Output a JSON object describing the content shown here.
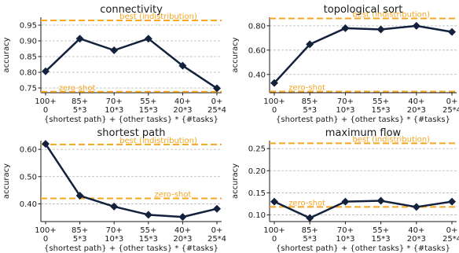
{
  "chart_data": [
    {
      "type": "line",
      "title": "connectivity",
      "xlabel": "{shortest path} + {other tasks} * {#tasks}",
      "ylabel": "accuracy",
      "categories": [
        [
          "100+",
          "0"
        ],
        [
          "85+",
          "5*3"
        ],
        [
          "70+",
          "10*3"
        ],
        [
          "55+",
          "15*3"
        ],
        [
          "40+",
          "20*3"
        ],
        [
          "0+",
          "25*4"
        ]
      ],
      "values": [
        0.803,
        0.907,
        0.87,
        0.907,
        0.821,
        0.749
      ],
      "ylim": [
        0.735,
        0.975
      ],
      "yticks": [
        0.75,
        0.8,
        0.85,
        0.9,
        0.95
      ],
      "ytick_labels": [
        "0.75",
        "0.80",
        "0.85",
        "0.90",
        "0.95"
      ],
      "grid": true,
      "reference_lines": [
        {
          "label": "best (indistribution)",
          "value": 0.965
        },
        {
          "label": "zero-shot",
          "value": 0.738
        }
      ]
    },
    {
      "type": "line",
      "title": "topological sort",
      "xlabel": "{shortest path} + {other tasks} * {#tasks}",
      "ylabel": "accuracy",
      "categories": [
        [
          "100+",
          "0"
        ],
        [
          "85+",
          "5*3"
        ],
        [
          "70+",
          "10*3"
        ],
        [
          "55+",
          "15*3"
        ],
        [
          "40+",
          "20*3"
        ],
        [
          "0+",
          "25*4"
        ]
      ],
      "values": [
        0.33,
        0.648,
        0.78,
        0.77,
        0.8,
        0.75
      ],
      "ylim": [
        0.25,
        0.87
      ],
      "yticks": [
        0.4,
        0.6,
        0.8
      ],
      "ytick_labels": [
        "0.40",
        "0.60",
        "0.80"
      ],
      "grid": true,
      "reference_lines": [
        {
          "label": "best (indistribution)",
          "value": 0.86
        },
        {
          "label": "zero-shot",
          "value": 0.26
        }
      ]
    },
    {
      "type": "line",
      "title": "shortest path",
      "xlabel": "{shortest path} + {other tasks} * {#tasks}",
      "ylabel": "accuracy",
      "categories": [
        [
          "100+",
          "0"
        ],
        [
          "85+",
          "5*3"
        ],
        [
          "70+",
          "10*3"
        ],
        [
          "55+",
          "15*3"
        ],
        [
          "40+",
          "20*3"
        ],
        [
          "0+",
          "25*4"
        ]
      ],
      "values": [
        0.62,
        0.43,
        0.39,
        0.36,
        0.352,
        0.382
      ],
      "ylim": [
        0.335,
        0.632
      ],
      "yticks": [
        0.4,
        0.5,
        0.6
      ],
      "ytick_labels": [
        "0.40",
        "0.50",
        "0.60"
      ],
      "grid": true,
      "reference_lines": [
        {
          "label": "best (indistribution)",
          "value": 0.618
        },
        {
          "label": "zero-shot",
          "value": 0.42
        }
      ]
    },
    {
      "type": "line",
      "title": "maximum flow",
      "xlabel": "{shortest path} + {other tasks} * {#tasks}",
      "ylabel": "accuracy",
      "categories": [
        [
          "100+",
          "0"
        ],
        [
          "85+",
          "5*3"
        ],
        [
          "70+",
          "10*3"
        ],
        [
          "55+",
          "15*3"
        ],
        [
          "40+",
          "20*3"
        ],
        [
          "0+",
          "25*4"
        ]
      ],
      "values": [
        0.13,
        0.093,
        0.13,
        0.132,
        0.118,
        0.13
      ],
      "ylim": [
        0.085,
        0.268
      ],
      "yticks": [
        0.1,
        0.15,
        0.2,
        0.25
      ],
      "ytick_labels": [
        "0.10",
        "0.15",
        "0.20",
        "0.25"
      ],
      "grid": true,
      "reference_lines": [
        {
          "label": "best (indistribution)",
          "value": 0.262
        },
        {
          "label": "zero-shot",
          "value": 0.118
        }
      ]
    }
  ],
  "colors": {
    "series": "#14213d",
    "reference": "#f5a623",
    "grid": "#b5b5b5",
    "axis": "#1a1a1a",
    "text": "#1a1a1a"
  }
}
